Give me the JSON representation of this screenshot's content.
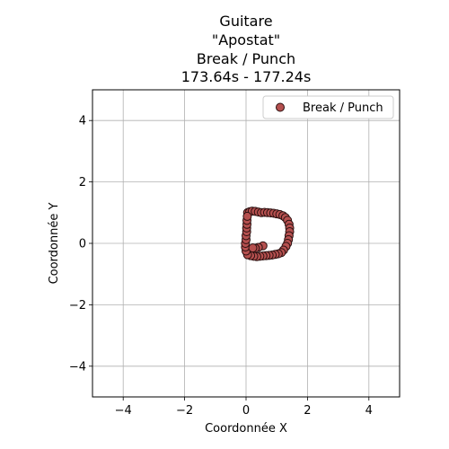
{
  "chart_data": {
    "type": "scatter",
    "title_lines": [
      "Guitare",
      "\"Apostat\"",
      "Break / Punch",
      "173.64s - 177.24s"
    ],
    "xlabel": "Coordonnée X",
    "ylabel": "Coordonnée Y",
    "xlim": [
      -5,
      5
    ],
    "ylim": [
      -5,
      5
    ],
    "xticks": [
      -4,
      -2,
      0,
      2,
      4
    ],
    "yticks": [
      -4,
      -2,
      0,
      2,
      4
    ],
    "grid": true,
    "legend": {
      "position": "top-right"
    },
    "series": [
      {
        "name": "Break / Punch",
        "color": "#b5504f",
        "edgecolor": "#2a1010",
        "points": [
          [
            0.05,
            1.0
          ],
          [
            0.12,
            1.03
          ],
          [
            0.2,
            1.05
          ],
          [
            0.3,
            1.04
          ],
          [
            0.4,
            1.02
          ],
          [
            0.5,
            1.0
          ],
          [
            0.6,
            1.01
          ],
          [
            0.7,
            1.0
          ],
          [
            0.8,
            0.99
          ],
          [
            0.9,
            0.98
          ],
          [
            1.0,
            0.96
          ],
          [
            1.1,
            0.94
          ],
          [
            1.2,
            0.9
          ],
          [
            1.28,
            0.84
          ],
          [
            1.35,
            0.75
          ],
          [
            1.4,
            0.62
          ],
          [
            1.42,
            0.5
          ],
          [
            1.42,
            0.38
          ],
          [
            1.4,
            0.25
          ],
          [
            1.38,
            0.12
          ],
          [
            1.35,
            0.0
          ],
          [
            1.3,
            -0.1
          ],
          [
            1.22,
            -0.22
          ],
          [
            1.15,
            -0.3
          ],
          [
            1.05,
            -0.34
          ],
          [
            0.95,
            -0.36
          ],
          [
            0.85,
            -0.38
          ],
          [
            0.75,
            -0.39
          ],
          [
            0.65,
            -0.4
          ],
          [
            0.55,
            -0.41
          ],
          [
            0.45,
            -0.42
          ],
          [
            0.35,
            -0.43
          ],
          [
            0.25,
            -0.42
          ],
          [
            0.15,
            -0.4
          ],
          [
            0.05,
            -0.37
          ],
          [
            0.0,
            -0.25
          ],
          [
            -0.02,
            -0.12
          ],
          [
            -0.02,
            0.0
          ],
          [
            0.0,
            0.12
          ],
          [
            0.0,
            0.25
          ],
          [
            0.02,
            0.38
          ],
          [
            0.02,
            0.5
          ],
          [
            0.03,
            0.62
          ],
          [
            0.03,
            0.75
          ],
          [
            0.04,
            0.88
          ],
          [
            0.55,
            -0.08
          ],
          [
            0.4,
            -0.13
          ],
          [
            0.3,
            -0.16
          ],
          [
            0.22,
            -0.15
          ]
        ]
      }
    ]
  }
}
